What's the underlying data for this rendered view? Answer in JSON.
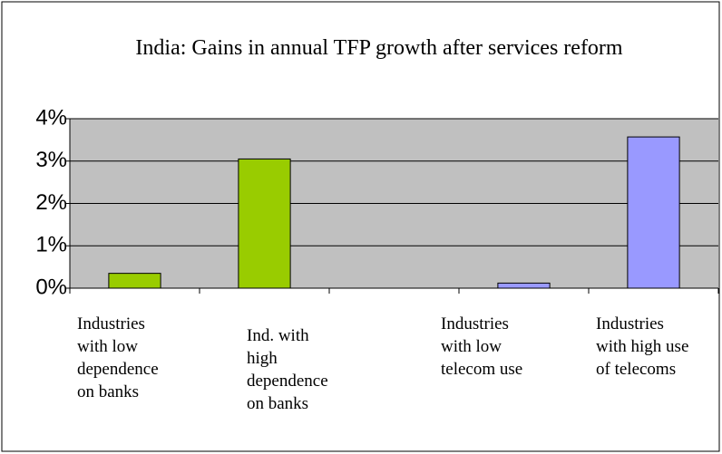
{
  "chart_data": {
    "type": "bar",
    "title": "India: Gains in annual TFP growth after services reform",
    "categories": [
      "Industries with low dependence on banks",
      "Ind. with high dependence on banks",
      null,
      "Industries with low telecom use",
      "Industries with high use of telecoms"
    ],
    "values": [
      0.35,
      3.05,
      null,
      0.12,
      3.57
    ],
    "colors": [
      "#99cc00",
      "#99cc00",
      null,
      "#9999ff",
      "#9999ff"
    ],
    "ylim": [
      0,
      4
    ],
    "yticks": [
      {
        "value": 0,
        "label": "0%"
      },
      {
        "value": 1,
        "label": "1%"
      },
      {
        "value": 2,
        "label": "2%"
      },
      {
        "value": 3,
        "label": "3%"
      },
      {
        "value": 4,
        "label": "4%"
      }
    ],
    "grid": true
  }
}
